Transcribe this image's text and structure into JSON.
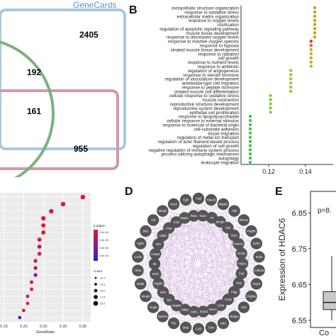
{
  "panels": {
    "B": "B",
    "D": "D",
    "E": "E"
  },
  "venn": {
    "genecards_label": "GeneCards",
    "counts": [
      "2405",
      "192",
      "161",
      "955"
    ],
    "colors": {
      "genecards": "#8ab6d6",
      "green": "#6aa56a",
      "pink": "#c98a9c"
    }
  },
  "panel_b": {
    "terms": [
      "extracellular structure organization",
      "response to oxidative stress",
      "extracellular matrix organization",
      "response to oxygen levels",
      "ossification",
      "regulation of apoptotic signaling pathway",
      "muscle tissue development",
      "response to decreased oxygen levels",
      "response to reactive oxygen species",
      "response to hypoxia",
      "striated muscle tissue development",
      "response to radiation",
      "cell growth",
      "response to nutrient levels",
      "response to antibiotic",
      "regulation of angiogenesis",
      "response to steroid hormone",
      "regulation of vasculature development",
      "ameboidal-type cell migration",
      "response to peptide hormone",
      "striated muscle cell differentiation",
      "cellular response to oxidative stress",
      "muscle contraction",
      "reproductive structure development",
      "reproductive system development",
      "epithelial cell proliferation",
      "response to lipopolysaccharide",
      "cellular response to external stimulus",
      "response to molecule of bacterial origin",
      "cell-substrate adhesion",
      "tissue migration",
      "regulation of metal ion transport",
      "regulation of actin filament-based process",
      "regulation of cell growth",
      "negative regulation of immune system process",
      "process utilizing autophagic mechanism",
      "autophagy",
      "leukocyte migration"
    ],
    "gene_ratio": [
      0.145,
      0.145,
      0.145,
      0.145,
      0.145,
      0.145,
      0.145,
      0.145,
      0.143,
      0.143,
      0.143,
      0.143,
      0.143,
      0.143,
      0.143,
      0.132,
      0.132,
      0.132,
      0.132,
      0.132,
      0.132,
      0.121,
      0.121,
      0.121,
      0.121,
      0.121,
      0.11,
      0.11,
      0.11,
      0.11,
      0.11,
      0.11,
      0.11,
      0.11,
      0.11,
      0.11,
      0.11,
      0.11
    ],
    "xticks": [
      "0.12",
      "0.14"
    ]
  },
  "panel_c": {
    "xlabel": "GeneRatio",
    "xticks": [
      "0.15",
      "0.20",
      "0.25",
      "0.30",
      "0.35"
    ],
    "legend_padj_title": "p.adjust",
    "legend_padj_ticks": [
      "1.0e-06",
      "2.0e-06",
      "3.0e-06",
      "4.0e-06"
    ],
    "legend_count_title": "Count",
    "legend_counts": [
      "10.0",
      "12.5",
      "15.0",
      "17.5",
      "20.0"
    ],
    "points": [
      {
        "x": 0.35,
        "color": "#e4163a"
      },
      {
        "x": 0.3,
        "color": "#e4163a"
      },
      {
        "x": 0.27,
        "color": "#e4163a"
      },
      {
        "x": 0.25,
        "color": "#e4163a"
      },
      {
        "x": 0.25,
        "color": "#e4163a"
      },
      {
        "x": 0.25,
        "color": "#e4163a"
      },
      {
        "x": 0.24,
        "color": "#e4163a"
      },
      {
        "x": 0.24,
        "color": "#c7144e"
      },
      {
        "x": 0.24,
        "color": "#e4163a"
      },
      {
        "x": 0.23,
        "color": "#e4163a"
      },
      {
        "x": 0.23,
        "color": "#b0136a"
      },
      {
        "x": 0.23,
        "color": "#6a1cc0"
      },
      {
        "x": 0.22,
        "color": "#e4163a"
      },
      {
        "x": 0.22,
        "color": "#e4163a"
      },
      {
        "x": 0.21,
        "color": "#e4163a"
      },
      {
        "x": 0.21,
        "color": "#e4163a"
      },
      {
        "x": 0.2,
        "color": "#d0154a"
      },
      {
        "x": 0.19,
        "color": "#2a1fe0"
      }
    ]
  },
  "network": {
    "nodes": [
      "Fasl",
      "Hdac6",
      "Mapk1",
      "Atf3",
      "Pik3ca",
      "Pdgfrb",
      "Ezh2",
      "Sod2",
      "Cdkn2a",
      "Ptgs2",
      "Pdgfra",
      "Cbs",
      "Rbbp4",
      "Jak1",
      "Ctss",
      "Ccl5",
      "Stat1",
      "Tlr2",
      "Notch1",
      "Vegfa",
      "Mmp9",
      "Ikbkb",
      "Hif1a",
      "Cxcl8",
      "Tgfb1",
      "Sirt1",
      "Tnf",
      "Mmp2",
      "Nos3",
      "Egfr"
    ],
    "inner_nodes": [
      "Alcam",
      "F3",
      "Mmp9",
      "Atf3",
      "Vcp1",
      "Notch1",
      "Abcb1",
      "Pik3r1",
      "Pml",
      "Tnfa",
      "Plpg",
      "Txnip",
      "Cd44",
      "Hmox1",
      "Slc3a2",
      "Cdk1",
      "Nfkb1",
      "Mapk8",
      "Sp1",
      "Nrf2",
      "Pdgfrb",
      "Ezh2",
      "Il6",
      "Casp3",
      "Klf4",
      "Cd80",
      "Ctss",
      "Ccl2",
      "Mapk1",
      "Rela"
    ],
    "edge_color": "#c9a9d6",
    "node_color": "#555555"
  },
  "panel_e": {
    "ylabel": "Expression of HDAC6",
    "yticks": [
      "6.55",
      "6.65",
      "6.75",
      "6.85"
    ],
    "ytick_values": [
      6.55,
      6.65,
      6.75,
      6.85
    ],
    "pvalue_text": "p=8.",
    "xlabel": "Co",
    "box": {
      "q1": 6.58,
      "median": 6.6,
      "q3": 6.63,
      "whisker_low": 6.55,
      "whisker_high": 6.73
    }
  }
}
